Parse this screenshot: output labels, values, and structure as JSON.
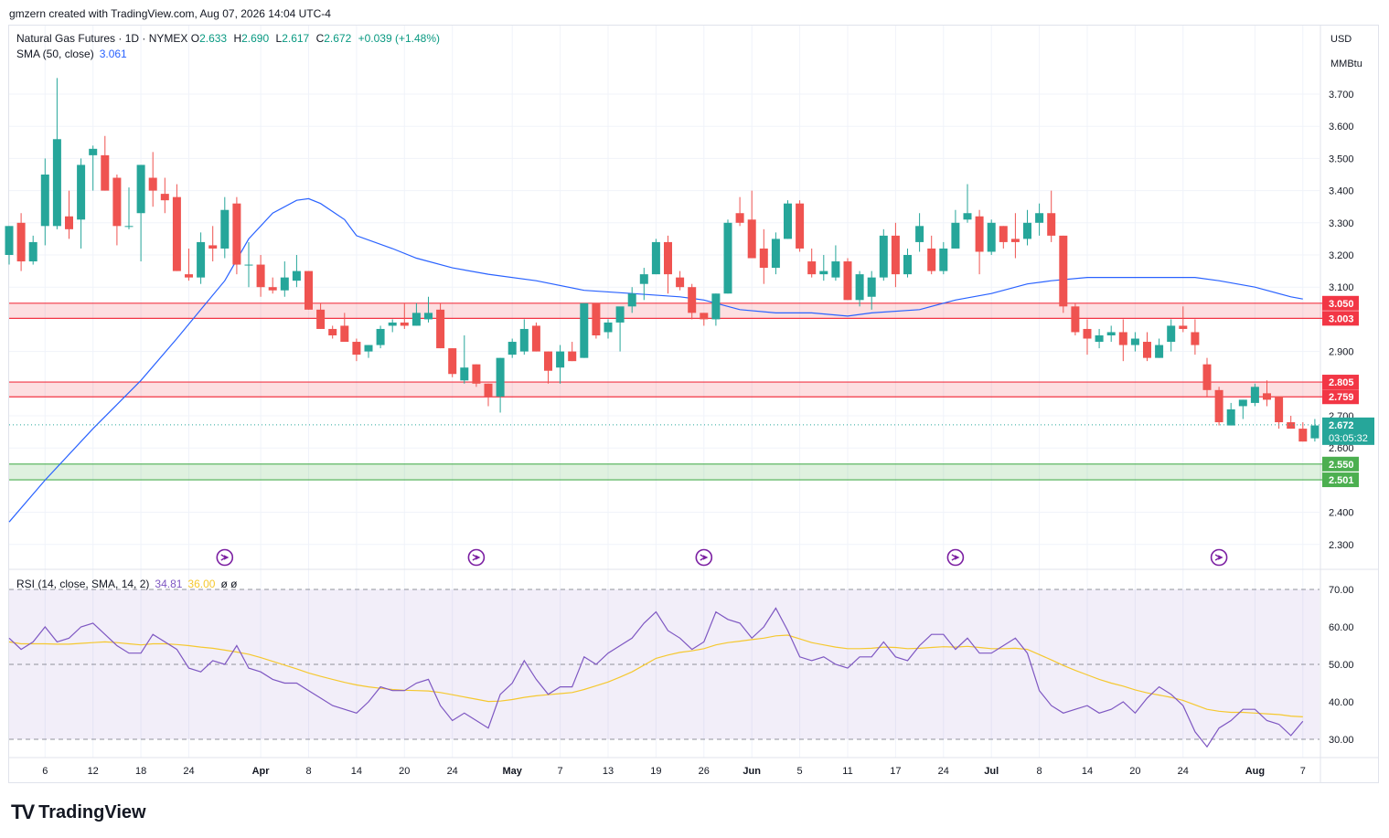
{
  "header": {
    "credit": "gmzern created with TradingView.com, Aug 07, 2026 14:04 UTC-4"
  },
  "legend": {
    "symbol": "Natural Gas Futures · 1D · NYMEX",
    "o_label": "O",
    "o_value": "2.633",
    "h_label": "H",
    "h_value": "2.690",
    "l_label": "L",
    "l_value": "2.617",
    "c_label": "C",
    "c_value": "2.672",
    "change": "+0.039 (+1.48%)",
    "sma_label": "SMA (50, close)",
    "sma_value": "3.061",
    "rsi_label": "RSI (14, close, SMA, 14, 2)",
    "rsi_value": "34.81",
    "rsi_ma_value": "36.00",
    "rsi_extra": "ø ø"
  },
  "price_scale": {
    "currency": "USD",
    "unit": "MMBtu"
  },
  "footer": {
    "brand": "TradingView",
    "logo_text": "TV"
  },
  "colors": {
    "up": "#26a69a",
    "down": "#ef5350",
    "sma": "#2962ff",
    "rsi": "#7e57c2",
    "rsi_ma": "#f5c82f",
    "resist_zone": "#f23645",
    "support_zone": "#4caf50"
  },
  "chart_data": [
    {
      "type": "candlestick",
      "title": "Natural Gas Futures · 1D · NYMEX",
      "ylim": [
        2.22,
        3.86
      ],
      "y_ticks": [
        2.3,
        2.4,
        2.6,
        2.7,
        2.9,
        3.1,
        3.2,
        3.3,
        3.4,
        3.5,
        3.6,
        3.7
      ],
      "y_tick_labels": [
        "2.300",
        "2.400",
        "2.600",
        "2.700",
        "2.900",
        "3.100",
        "3.200",
        "3.300",
        "3.400",
        "3.500",
        "3.600",
        "3.700"
      ],
      "x_ticks": [
        {
          "i": 3,
          "label": "6"
        },
        {
          "i": 7,
          "label": "12"
        },
        {
          "i": 11,
          "label": "18"
        },
        {
          "i": 15,
          "label": "24"
        },
        {
          "i": 21,
          "label": "Apr"
        },
        {
          "i": 25,
          "label": "8"
        },
        {
          "i": 29,
          "label": "14"
        },
        {
          "i": 33,
          "label": "20"
        },
        {
          "i": 37,
          "label": "24"
        },
        {
          "i": 42,
          "label": "May"
        },
        {
          "i": 46,
          "label": "7"
        },
        {
          "i": 50,
          "label": "13"
        },
        {
          "i": 54,
          "label": "19"
        },
        {
          "i": 58,
          "label": "26"
        },
        {
          "i": 62,
          "label": "Jun"
        },
        {
          "i": 66,
          "label": "5"
        },
        {
          "i": 70,
          "label": "11"
        },
        {
          "i": 74,
          "label": "17"
        },
        {
          "i": 78,
          "label": "24"
        },
        {
          "i": 82,
          "label": "Jul"
        },
        {
          "i": 86,
          "label": "8"
        },
        {
          "i": 90,
          "label": "14"
        },
        {
          "i": 94,
          "label": "20"
        },
        {
          "i": 98,
          "label": "24"
        },
        {
          "i": 104,
          "label": "Aug"
        },
        {
          "i": 108,
          "label": "7"
        }
      ],
      "candles": [
        [
          3.2,
          3.29,
          3.17,
          3.29
        ],
        [
          3.3,
          3.33,
          3.15,
          3.18
        ],
        [
          3.18,
          3.26,
          3.17,
          3.24
        ],
        [
          3.29,
          3.5,
          3.23,
          3.45
        ],
        [
          3.29,
          3.75,
          3.28,
          3.56
        ],
        [
          3.32,
          3.4,
          3.25,
          3.28
        ],
        [
          3.31,
          3.5,
          3.22,
          3.48
        ],
        [
          3.51,
          3.54,
          3.4,
          3.53
        ],
        [
          3.51,
          3.57,
          3.4,
          3.4
        ],
        [
          3.44,
          3.45,
          3.23,
          3.29
        ],
        [
          3.29,
          3.41,
          3.28,
          3.29
        ],
        [
          3.33,
          3.48,
          3.18,
          3.48
        ],
        [
          3.44,
          3.52,
          3.35,
          3.4
        ],
        [
          3.39,
          3.44,
          3.33,
          3.37
        ],
        [
          3.38,
          3.42,
          3.15,
          3.15
        ],
        [
          3.14,
          3.22,
          3.12,
          3.13
        ],
        [
          3.13,
          3.27,
          3.11,
          3.24
        ],
        [
          3.23,
          3.29,
          3.18,
          3.22
        ],
        [
          3.22,
          3.38,
          3.19,
          3.34
        ],
        [
          3.36,
          3.38,
          3.14,
          3.17
        ],
        [
          3.17,
          3.24,
          3.1,
          3.17
        ],
        [
          3.17,
          3.2,
          3.07,
          3.1
        ],
        [
          3.1,
          3.13,
          3.08,
          3.09
        ],
        [
          3.09,
          3.18,
          3.07,
          3.13
        ],
        [
          3.12,
          3.2,
          3.1,
          3.15
        ],
        [
          3.15,
          3.15,
          3.03,
          3.03
        ],
        [
          3.03,
          3.05,
          2.97,
          2.97
        ],
        [
          2.97,
          2.98,
          2.94,
          2.95
        ],
        [
          2.98,
          3.02,
          2.94,
          2.93
        ],
        [
          2.93,
          2.94,
          2.87,
          2.89
        ],
        [
          2.9,
          2.92,
          2.88,
          2.92
        ],
        [
          2.92,
          2.98,
          2.91,
          2.97
        ],
        [
          2.98,
          3.0,
          2.96,
          2.99
        ],
        [
          2.99,
          3.05,
          2.97,
          2.98
        ],
        [
          2.98,
          3.05,
          2.98,
          3.02
        ],
        [
          3.0,
          3.07,
          2.99,
          3.02
        ],
        [
          3.03,
          3.05,
          2.91,
          2.91
        ],
        [
          2.91,
          2.91,
          2.82,
          2.83
        ],
        [
          2.81,
          2.95,
          2.8,
          2.85
        ],
        [
          2.86,
          2.86,
          2.79,
          2.8
        ],
        [
          2.8,
          2.8,
          2.73,
          2.76
        ],
        [
          2.76,
          2.88,
          2.71,
          2.88
        ],
        [
          2.89,
          2.94,
          2.88,
          2.93
        ],
        [
          2.9,
          3.0,
          2.89,
          2.97
        ],
        [
          2.98,
          2.99,
          2.9,
          2.9
        ],
        [
          2.9,
          2.9,
          2.8,
          2.84
        ],
        [
          2.85,
          2.92,
          2.8,
          2.9
        ],
        [
          2.9,
          2.93,
          2.87,
          2.87
        ],
        [
          2.88,
          3.05,
          2.88,
          3.05
        ],
        [
          3.05,
          3.05,
          2.94,
          2.95
        ],
        [
          2.96,
          3.0,
          2.94,
          2.99
        ],
        [
          2.99,
          3.03,
          2.9,
          3.04
        ],
        [
          3.04,
          3.1,
          3.02,
          3.08
        ],
        [
          3.11,
          3.16,
          3.06,
          3.14
        ],
        [
          3.14,
          3.25,
          3.14,
          3.24
        ],
        [
          3.24,
          3.26,
          3.08,
          3.14
        ],
        [
          3.13,
          3.15,
          3.09,
          3.1
        ],
        [
          3.1,
          3.11,
          3.0,
          3.02
        ],
        [
          3.02,
          3.02,
          2.98,
          3.0
        ],
        [
          3.0,
          3.08,
          2.98,
          3.08
        ],
        [
          3.08,
          3.31,
          3.08,
          3.3
        ],
        [
          3.33,
          3.38,
          3.29,
          3.3
        ],
        [
          3.31,
          3.4,
          3.19,
          3.19
        ],
        [
          3.22,
          3.28,
          3.11,
          3.16
        ],
        [
          3.16,
          3.27,
          3.14,
          3.25
        ],
        [
          3.25,
          3.37,
          3.25,
          3.36
        ],
        [
          3.36,
          3.37,
          3.21,
          3.22
        ],
        [
          3.18,
          3.22,
          3.13,
          3.14
        ],
        [
          3.14,
          3.2,
          3.12,
          3.15
        ],
        [
          3.13,
          3.23,
          3.12,
          3.18
        ],
        [
          3.18,
          3.19,
          3.06,
          3.06
        ],
        [
          3.06,
          3.15,
          3.04,
          3.14
        ],
        [
          3.07,
          3.15,
          3.03,
          3.13
        ],
        [
          3.13,
          3.28,
          3.12,
          3.26
        ],
        [
          3.26,
          3.3,
          3.1,
          3.14
        ],
        [
          3.14,
          3.22,
          3.13,
          3.2
        ],
        [
          3.24,
          3.33,
          3.21,
          3.29
        ],
        [
          3.22,
          3.26,
          3.14,
          3.15
        ],
        [
          3.15,
          3.24,
          3.14,
          3.22
        ],
        [
          3.22,
          3.34,
          3.22,
          3.3
        ],
        [
          3.31,
          3.42,
          3.3,
          3.33
        ],
        [
          3.32,
          3.34,
          3.14,
          3.21
        ],
        [
          3.21,
          3.31,
          3.2,
          3.3
        ],
        [
          3.29,
          3.29,
          3.22,
          3.24
        ],
        [
          3.25,
          3.33,
          3.19,
          3.24
        ],
        [
          3.25,
          3.34,
          3.23,
          3.3
        ],
        [
          3.3,
          3.36,
          3.26,
          3.33
        ],
        [
          3.33,
          3.4,
          3.24,
          3.26
        ],
        [
          3.26,
          3.26,
          3.02,
          3.04
        ],
        [
          3.04,
          3.05,
          2.95,
          2.96
        ],
        [
          2.97,
          3.0,
          2.89,
          2.94
        ],
        [
          2.93,
          2.97,
          2.91,
          2.95
        ],
        [
          2.95,
          2.98,
          2.93,
          2.96
        ],
        [
          2.96,
          3.0,
          2.87,
          2.92
        ],
        [
          2.92,
          2.96,
          2.9,
          2.94
        ],
        [
          2.93,
          2.96,
          2.87,
          2.88
        ],
        [
          2.88,
          2.94,
          2.88,
          2.92
        ],
        [
          2.93,
          3.0,
          2.9,
          2.98
        ],
        [
          2.98,
          3.04,
          2.96,
          2.97
        ],
        [
          2.96,
          3.0,
          2.89,
          2.92
        ],
        [
          2.86,
          2.88,
          2.76,
          2.78
        ],
        [
          2.78,
          2.79,
          2.67,
          2.68
        ],
        [
          2.67,
          2.74,
          2.67,
          2.72
        ],
        [
          2.73,
          2.75,
          2.69,
          2.75
        ],
        [
          2.74,
          2.8,
          2.73,
          2.79
        ],
        [
          2.77,
          2.81,
          2.73,
          2.75
        ],
        [
          2.76,
          2.76,
          2.66,
          2.68
        ],
        [
          2.68,
          2.7,
          2.66,
          2.66
        ],
        [
          2.66,
          2.68,
          2.62,
          2.62
        ],
        [
          2.63,
          2.69,
          2.62,
          2.67
        ]
      ],
      "sma": {
        "name": "SMA (50, close)",
        "points": [
          [
            0,
            2.37
          ],
          [
            3,
            2.5
          ],
          [
            7,
            2.66
          ],
          [
            11,
            2.81
          ],
          [
            14,
            2.94
          ],
          [
            16,
            3.03
          ],
          [
            18,
            3.12
          ],
          [
            20,
            3.25
          ],
          [
            22,
            3.33
          ],
          [
            24,
            3.37
          ],
          [
            25,
            3.375
          ],
          [
            26,
            3.36
          ],
          [
            28,
            3.31
          ],
          [
            29,
            3.26
          ],
          [
            32,
            3.22
          ],
          [
            34,
            3.19
          ],
          [
            37,
            3.16
          ],
          [
            40,
            3.14
          ],
          [
            44,
            3.12
          ],
          [
            48,
            3.09
          ],
          [
            52,
            3.08
          ],
          [
            56,
            3.07
          ],
          [
            58,
            3.06
          ],
          [
            61,
            3.03
          ],
          [
            64,
            3.02
          ],
          [
            67,
            3.02
          ],
          [
            70,
            3.01
          ],
          [
            72,
            3.02
          ],
          [
            76,
            3.03
          ],
          [
            79,
            3.06
          ],
          [
            82,
            3.08
          ],
          [
            85,
            3.11
          ],
          [
            87,
            3.12
          ],
          [
            90,
            3.13
          ],
          [
            95,
            3.13
          ],
          [
            99,
            3.13
          ],
          [
            101,
            3.12
          ],
          [
            104,
            3.1
          ],
          [
            107,
            3.07
          ],
          [
            108,
            3.063
          ]
        ]
      },
      "zones": [
        {
          "top": 3.05,
          "bottom": 3.003,
          "top_label": "3.050",
          "bottom_label": "3.003",
          "kind": "resistance"
        },
        {
          "top": 2.805,
          "bottom": 2.759,
          "top_label": "2.805",
          "bottom_label": "2.759",
          "kind": "resistance"
        },
        {
          "top": 2.55,
          "bottom": 2.501,
          "top_label": "2.550",
          "bottom_label": "2.501",
          "kind": "support"
        }
      ],
      "last_price": {
        "value": 2.672,
        "label": "2.672",
        "countdown": "03:05:32"
      },
      "event_markers": [
        18,
        39,
        58,
        79,
        101
      ]
    },
    {
      "type": "line",
      "title": "RSI (14, close, SMA, 14, 2)",
      "ylim": [
        24,
        74
      ],
      "y_ticks": [
        30,
        40,
        50,
        60,
        70
      ],
      "y_tick_labels": [
        "30.00",
        "40.00",
        "50.00",
        "60.00",
        "70.00"
      ],
      "bands": {
        "upper": 70,
        "middle": 50,
        "lower": 30
      },
      "series": [
        {
          "name": "RSI",
          "values": [
            57,
            54,
            56,
            60,
            56,
            57,
            60,
            61,
            58,
            55,
            53,
            53,
            58,
            56,
            54,
            49,
            48,
            51,
            50,
            55,
            49,
            48,
            46,
            45,
            45,
            43,
            41,
            39,
            38,
            37,
            40,
            44,
            43,
            43,
            45,
            46,
            39,
            35,
            37,
            35,
            33,
            42,
            45,
            51,
            46,
            42,
            44,
            44,
            52,
            50,
            53,
            55,
            57,
            61,
            64,
            59,
            57,
            54,
            56,
            64,
            62,
            61,
            57,
            60,
            65,
            59,
            52,
            51,
            52,
            50,
            49,
            52,
            52,
            56,
            52,
            51,
            55,
            58,
            58,
            54,
            57,
            53,
            53,
            55,
            57,
            53,
            43,
            39,
            37,
            38,
            39,
            37,
            38,
            40,
            37,
            41,
            44,
            42,
            39,
            32,
            28,
            33,
            35,
            38,
            38,
            35,
            34,
            31,
            34.81
          ]
        },
        {
          "name": "RSI MA",
          "values": [
            56,
            55.5,
            55.5,
            55.5,
            55.4,
            55.4,
            55.6,
            55.8,
            56,
            55.8,
            55.5,
            55.2,
            55.5,
            55.5,
            55.3,
            55,
            54.6,
            54.3,
            53.8,
            53.3,
            52.7,
            51.8,
            50.8,
            49.8,
            48.8,
            47.7,
            46.8,
            46,
            45.2,
            44.5,
            44,
            43.6,
            43.3,
            43.1,
            43,
            42.9,
            42.5,
            41.9,
            41.3,
            40.7,
            40.1,
            40.2,
            40.6,
            41.2,
            41.6,
            41.9,
            42.2,
            42.5,
            43.3,
            44.3,
            45.3,
            46.6,
            48,
            49.8,
            51.6,
            52.5,
            53.2,
            53.6,
            54.2,
            55.2,
            55.8,
            56.2,
            56.6,
            57,
            57.6,
            57.8,
            56.8,
            55.8,
            55.2,
            54.6,
            54.2,
            54.2,
            54.3,
            54.6,
            54.5,
            54.2,
            54.3,
            54.5,
            54.7,
            54.6,
            54.8,
            54.5,
            54.2,
            54.2,
            54.3,
            54,
            52.6,
            51.2,
            49.7,
            48.4,
            47.2,
            46,
            45,
            44.2,
            43.2,
            42.4,
            41.8,
            41.2,
            40.4,
            39.2,
            38,
            37.5,
            37.2,
            37.2,
            37,
            36.8,
            36.6,
            36.2,
            36
          ]
        }
      ]
    }
  ]
}
